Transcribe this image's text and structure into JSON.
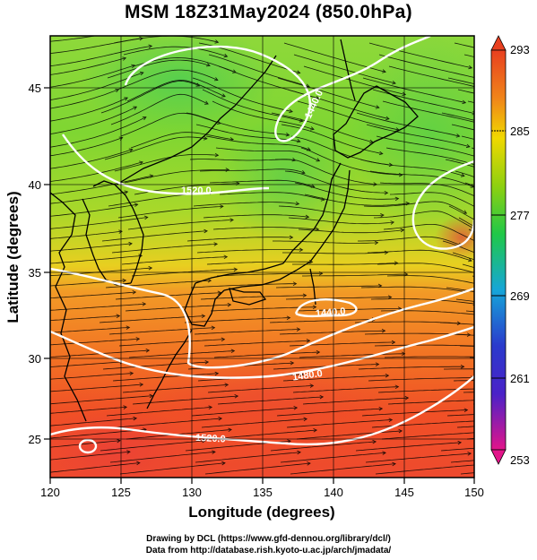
{
  "title": "MSM 18Z31May2024 (850.0hPa)",
  "x_axis": {
    "label": "Longitude (degrees)",
    "range": [
      120,
      150
    ],
    "ticks": [
      120,
      125,
      130,
      135,
      140,
      145,
      150
    ]
  },
  "y_axis": {
    "label": "Latitude  (degrees)",
    "range": [
      22.4,
      47.6
    ],
    "ticks": [
      25,
      30,
      35,
      40,
      45
    ]
  },
  "colorbar": {
    "ticks": [
      293,
      285,
      277,
      269,
      261,
      253
    ],
    "range": [
      253,
      293
    ],
    "colors": [
      "#e2158a",
      "#8a1ac8",
      "#2a3acc",
      "#16a6d8",
      "#20c848",
      "#8ed010",
      "#f0d800",
      "#f0841a",
      "#e84020"
    ]
  },
  "contours": [
    {
      "label": "1440.0"
    },
    {
      "label": "1520.0"
    },
    {
      "label": "1440.0"
    },
    {
      "label": "1480.0"
    },
    {
      "label": "1520.0"
    }
  ],
  "credits": {
    "line1": "Drawing by DCL (https://www.gfd-dennou.org/library/dcl/)",
    "line2": "Data from http://database.rish.kyoto-u.ac.jp/arch/jmadata/"
  }
}
